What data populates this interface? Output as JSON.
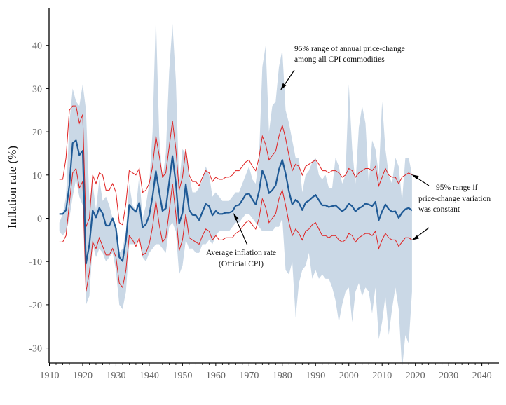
{
  "chart_data": {
    "type": "line",
    "title": "",
    "xlabel": "",
    "ylabel": "Inflation rate (%)",
    "xlim": [
      1910,
      2045
    ],
    "ylim": [
      -34,
      48
    ],
    "x_ticks": [
      1910,
      1920,
      1930,
      1940,
      1950,
      1960,
      1970,
      1980,
      1990,
      2000,
      2010,
      2020,
      2030,
      2040
    ],
    "y_ticks": [
      40,
      30,
      20,
      10,
      0,
      -10,
      -20,
      -30
    ],
    "x_tick_labels": [
      "1910",
      "1920",
      "1930",
      "1940",
      "1950",
      "1960",
      "1970",
      "1980",
      "1990",
      "2000",
      "2010",
      "2020",
      "2030",
      "2040"
    ],
    "y_tick_labels": [
      "40",
      "30",
      "20",
      "10",
      "0",
      "-10",
      "-20",
      "-30"
    ],
    "grid": false,
    "legend": "none",
    "colors": {
      "band": "#cad8e6",
      "avg_line": "#1f5a96",
      "bounds": "#e02020",
      "text": "#111111",
      "ticks": "#666666"
    },
    "series": [
      {
        "name": "Average inflation rate (Official CPI)",
        "x": [
          1913,
          1914,
          1915,
          1916,
          1917,
          1918,
          1919,
          1920,
          1921,
          1922,
          1923,
          1924,
          1925,
          1926,
          1927,
          1928,
          1929,
          1930,
          1931,
          1932,
          1933,
          1934,
          1935,
          1936,
          1937,
          1938,
          1939,
          1940,
          1941,
          1942,
          1943,
          1944,
          1945,
          1946,
          1947,
          1948,
          1949,
          1950,
          1951,
          1952,
          1953,
          1954,
          1955,
          1956,
          1957,
          1958,
          1959,
          1960,
          1961,
          1962,
          1963,
          1964,
          1965,
          1966,
          1967,
          1968,
          1969,
          1970,
          1971,
          1972,
          1973,
          1974,
          1975,
          1976,
          1977,
          1978,
          1979,
          1980,
          1981,
          1982,
          1983,
          1984,
          1985,
          1986,
          1987,
          1988,
          1989,
          1990,
          1991,
          1992,
          1993,
          1994,
          1995,
          1996,
          1997,
          1998,
          1999,
          2000,
          2001,
          2002,
          2003,
          2004,
          2005,
          2006,
          2007,
          2008,
          2009,
          2010,
          2011,
          2012,
          2013,
          2014,
          2015,
          2016,
          2017,
          2018,
          2019
        ],
        "y": [
          1.0,
          1.0,
          1.9,
          7.6,
          17.4,
          18.0,
          14.6,
          15.6,
          -10.5,
          -6.1,
          1.8,
          0.2,
          2.4,
          1.1,
          -1.7,
          -1.7,
          0.0,
          -2.3,
          -9.0,
          -9.9,
          -5.1,
          3.1,
          2.2,
          1.5,
          3.6,
          -2.1,
          -1.4,
          0.7,
          5.0,
          10.9,
          6.1,
          1.7,
          2.3,
          8.3,
          14.4,
          8.1,
          -1.2,
          1.3,
          7.9,
          1.9,
          0.8,
          0.7,
          -0.4,
          1.5,
          3.3,
          2.8,
          0.7,
          1.7,
          1.0,
          1.0,
          1.3,
          1.3,
          1.6,
          2.9,
          3.1,
          4.2,
          5.5,
          5.7,
          4.4,
          3.2,
          6.2,
          11.0,
          9.1,
          5.8,
          6.5,
          7.6,
          11.3,
          13.5,
          10.3,
          6.2,
          3.2,
          4.3,
          3.6,
          1.9,
          3.6,
          4.1,
          4.8,
          5.4,
          4.2,
          3.0,
          3.0,
          2.6,
          2.8,
          3.0,
          2.3,
          1.6,
          2.2,
          3.4,
          2.8,
          1.6,
          2.3,
          2.7,
          3.4,
          3.2,
          2.8,
          3.8,
          -0.4,
          1.6,
          3.2,
          2.1,
          1.5,
          1.6,
          0.1,
          1.3,
          2.1,
          2.4,
          1.8
        ]
      }
    ],
    "band_upper": [
      -1,
      1,
      5,
      22,
      30,
      27,
      26,
      31,
      25,
      4,
      8,
      2,
      9,
      4,
      5,
      3,
      0,
      -3,
      -8,
      -7,
      -3,
      8,
      3,
      2,
      10,
      0,
      3,
      8,
      20,
      47,
      19,
      9,
      15,
      34,
      45,
      32,
      8,
      16,
      15,
      10,
      6,
      6,
      7,
      9,
      12,
      10,
      5,
      6,
      5,
      4,
      4,
      4,
      5,
      6,
      6,
      8,
      10,
      12,
      9,
      8,
      14,
      35,
      40,
      20,
      26,
      27,
      35,
      39,
      25,
      22,
      18,
      14,
      14,
      6,
      10,
      11,
      13,
      14,
      10,
      9,
      10,
      7,
      7,
      14,
      12,
      8,
      10,
      31,
      16,
      8,
      21,
      26,
      22,
      8,
      18,
      16,
      10,
      27,
      16,
      10,
      8,
      14,
      12,
      4,
      14,
      14,
      10
    ],
    "band_lower": [
      -3,
      -4,
      -3,
      0,
      5,
      9,
      5,
      3,
      -20,
      -18,
      -6,
      -9,
      -7,
      -8,
      -10,
      -9,
      -8,
      -12,
      -20,
      -21,
      -17,
      -6,
      -6,
      -6,
      -4,
      -9,
      -10,
      -8,
      -7,
      -6,
      -6,
      -7,
      -8,
      -2,
      -1,
      -3,
      -13,
      -11,
      -5,
      -7,
      -7,
      -8,
      -8,
      -6,
      -6,
      -5,
      -6,
      -4,
      -3,
      -3,
      -3,
      -3,
      -2,
      -1,
      -1,
      0,
      1,
      1,
      0,
      -1,
      -2,
      -3,
      -3,
      -3,
      -3,
      -2,
      -2,
      0,
      -12,
      -13,
      -10,
      -23,
      -15,
      -12,
      -11,
      -8,
      -14,
      -12,
      -14,
      -13,
      -14,
      -14,
      -16,
      -19,
      -24,
      -20,
      -17,
      -16,
      -24,
      -17,
      -15,
      -18,
      -16,
      -17,
      -22,
      -16,
      -28,
      -24,
      -18,
      -27,
      -21,
      -16,
      -21,
      -35,
      -27,
      -29,
      -17
    ],
    "red_upper": [
      9,
      9,
      14,
      25,
      26,
      26,
      22,
      24,
      -2,
      0,
      10,
      8,
      10.5,
      10,
      6.5,
      6.5,
      8,
      6,
      -1,
      -1.5,
      3.5,
      11,
      10.5,
      10,
      11.5,
      6,
      6.5,
      8,
      12,
      19,
      14.5,
      9.5,
      10.5,
      16.5,
      22.5,
      16,
      6.5,
      9.5,
      16,
      10,
      8.5,
      8.5,
      7.5,
      9.5,
      11,
      10.5,
      8.5,
      9.5,
      9,
      9,
      9.5,
      9.5,
      10,
      11,
      11,
      12,
      13,
      13.5,
      12,
      11,
      14,
      19,
      17,
      13.5,
      14.5,
      15.5,
      19,
      21.5,
      18.5,
      14.5,
      11,
      12.5,
      12,
      10,
      12,
      12.5,
      13,
      13.5,
      12.5,
      11,
      11,
      10.5,
      11,
      11,
      10.5,
      9.5,
      10,
      11.5,
      11,
      9.5,
      10.5,
      11,
      11.5,
      11.5,
      11,
      12,
      7.5,
      9.5,
      11.5,
      10,
      9.5,
      9.5,
      8,
      9.5,
      10,
      10.5,
      10,
      9.5
    ],
    "red_lower": [
      -5.5,
      -5.5,
      -4,
      3.5,
      10.5,
      11.5,
      7,
      8.5,
      -17,
      -12.5,
      -5.5,
      -7,
      -4.5,
      -6.5,
      -8.5,
      -8.5,
      -7,
      -9,
      -15,
      -16,
      -12,
      -4,
      -5,
      -6.5,
      -4.5,
      -8.5,
      -8,
      -6,
      -2,
      4,
      -1.5,
      -5.5,
      -4.5,
      1.5,
      8,
      1,
      -7.5,
      -5,
      1,
      -4.5,
      -5,
      -5.5,
      -6,
      -4,
      -2.5,
      -3,
      -5,
      -4,
      -5,
      -5,
      -4.5,
      -4.5,
      -4.5,
      -3.5,
      -3,
      -2,
      -1,
      -0.5,
      -1.5,
      -2.5,
      0,
      4.5,
      2.5,
      -1,
      0,
      1,
      4.5,
      6.5,
      3,
      -1,
      -4,
      -2.5,
      -3.5,
      -5,
      -3,
      -2.5,
      -1.5,
      -1,
      -2.5,
      -4,
      -4,
      -4.5,
      -4,
      -4,
      -5,
      -5.5,
      -5,
      -3.5,
      -4,
      -5.5,
      -4.5,
      -4,
      -3.5,
      -3.5,
      -4,
      -3,
      -7,
      -5,
      -3.5,
      -4.5,
      -5,
      -5,
      -6.5,
      -5.5,
      -4.5,
      -4.5,
      -5,
      -5.5
    ],
    "annotations": [
      {
        "text": [
          "95% range of annual price-change",
          "among all CPI commodities"
        ],
        "points_to": [
          1979,
          30
        ]
      },
      {
        "text": [
          "95% range if",
          "price-change variation",
          "was constant"
        ],
        "points_to": [
          [
            2019,
            10
          ],
          [
            2019,
            -5
          ]
        ]
      },
      {
        "text": [
          "Average inflation rate",
          "(Official CPI)"
        ],
        "points_to": [
          1965,
          2
        ]
      }
    ]
  }
}
